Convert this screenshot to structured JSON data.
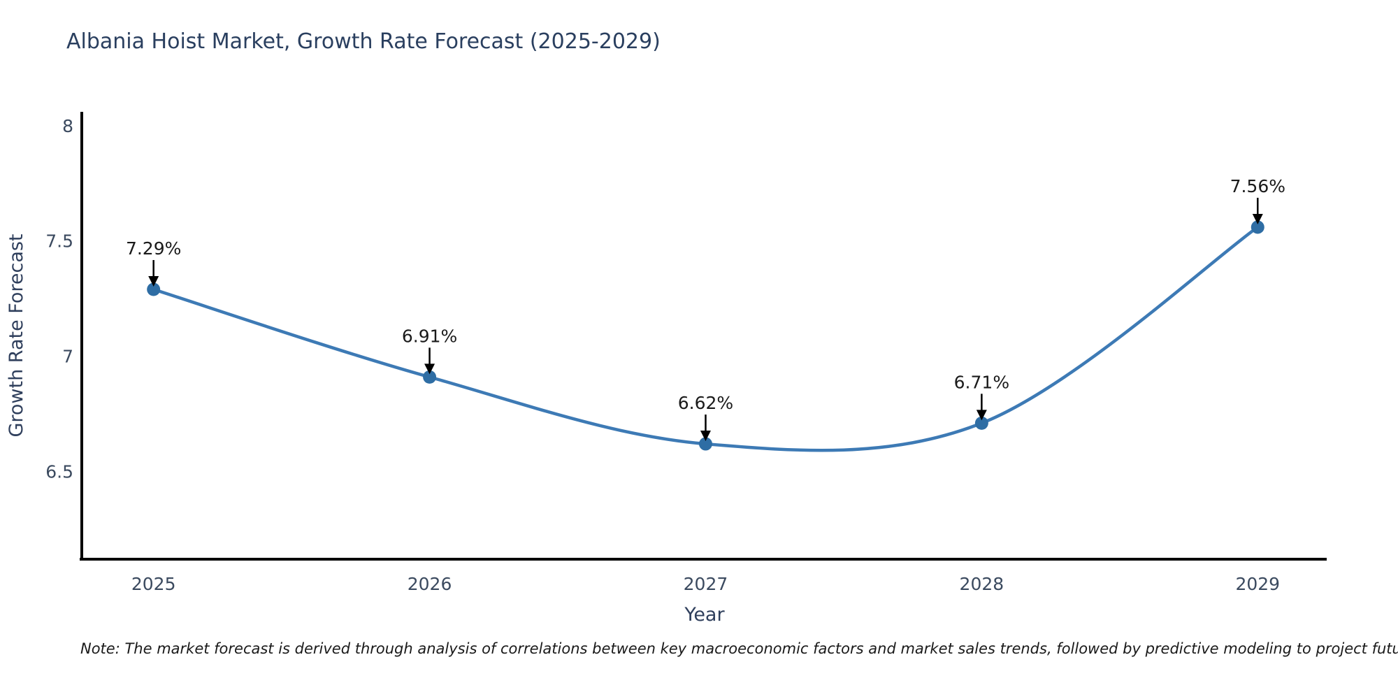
{
  "title": "Albania Hoist Market, Growth Rate Forecast (2025-2029)",
  "note": "Note: The market forecast is derived through analysis of correlations between key macroeconomic factors and market sales trends, followed by predictive modeling to project future sales",
  "chart_data": {
    "type": "line",
    "title": "Albania Hoist Market, Growth Rate Forecast (2025-2029)",
    "xlabel": "Year",
    "ylabel": "Growth Rate Forecast",
    "x": [
      2025,
      2026,
      2027,
      2028,
      2029
    ],
    "categories": [
      "2025",
      "2026",
      "2027",
      "2028",
      "2029"
    ],
    "values": [
      7.29,
      6.91,
      6.62,
      6.71,
      7.56
    ],
    "point_labels": [
      "7.29%",
      "6.91%",
      "6.62%",
      "6.71%",
      "7.56%"
    ],
    "yticks": [
      6.5,
      7.0,
      7.5,
      8.0
    ],
    "ytick_labels": [
      "6.5",
      "7",
      "7.5",
      "8"
    ],
    "xlim": [
      2024.74,
      2029.25
    ],
    "ylim": [
      6.12,
      8.06
    ],
    "grid": false,
    "legend": "none",
    "curve": "spline",
    "marker": "circle",
    "colors": {
      "line": "#3d7ab5",
      "marker": "#2e6da4",
      "spine": "#000000",
      "tick_label": "#3b4a5f",
      "axis_title": "#2f3f5c",
      "chart_title": "#2a3f5f",
      "annotation_text": "#1a1a1a",
      "annotation_arrow": "#000000",
      "background": "#ffffff"
    }
  }
}
